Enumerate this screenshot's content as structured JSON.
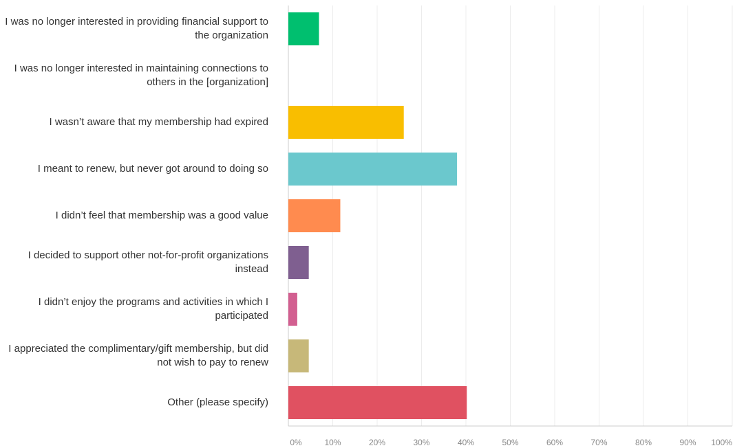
{
  "chart_data": {
    "type": "bar",
    "orientation": "horizontal",
    "categories": [
      "I was no longer interested in providing financial support to the organization",
      "I was no longer interested in maintaining connections to others in the [organization]",
      "I wasn’t aware that my membership had expired",
      "I meant to renew, but never got around to doing so",
      "I didn’t feel that membership was a good value",
      "I decided to support other not-for-profit organizations instead",
      "I didn’t enjoy the programs and activities in which I participated",
      "I appreciated the complimentary/gift membership, but did not wish to pay to renew",
      "Other (please specify)"
    ],
    "values": [
      6.9,
      0,
      26,
      38,
      11.7,
      4.6,
      2,
      4.6,
      40.2
    ],
    "colors": [
      "#00bf6f",
      "#507cb6",
      "#f9be00",
      "#6bc8cd",
      "#ff8b4f",
      "#7f5f90",
      "#d25f90",
      "#c7b879",
      "#e05161"
    ],
    "xlim": [
      0,
      100
    ],
    "xticks": [
      {
        "value": 0,
        "label": "0%"
      },
      {
        "value": 10,
        "label": "10%"
      },
      {
        "value": 20,
        "label": "20%"
      },
      {
        "value": 30,
        "label": "30%"
      },
      {
        "value": 40,
        "label": "40%"
      },
      {
        "value": 50,
        "label": "50%"
      },
      {
        "value": 60,
        "label": "60%"
      },
      {
        "value": 70,
        "label": "70%"
      },
      {
        "value": 80,
        "label": "80%"
      },
      {
        "value": 90,
        "label": "90%"
      },
      {
        "value": 100,
        "label": "100%"
      }
    ],
    "grid": true
  }
}
